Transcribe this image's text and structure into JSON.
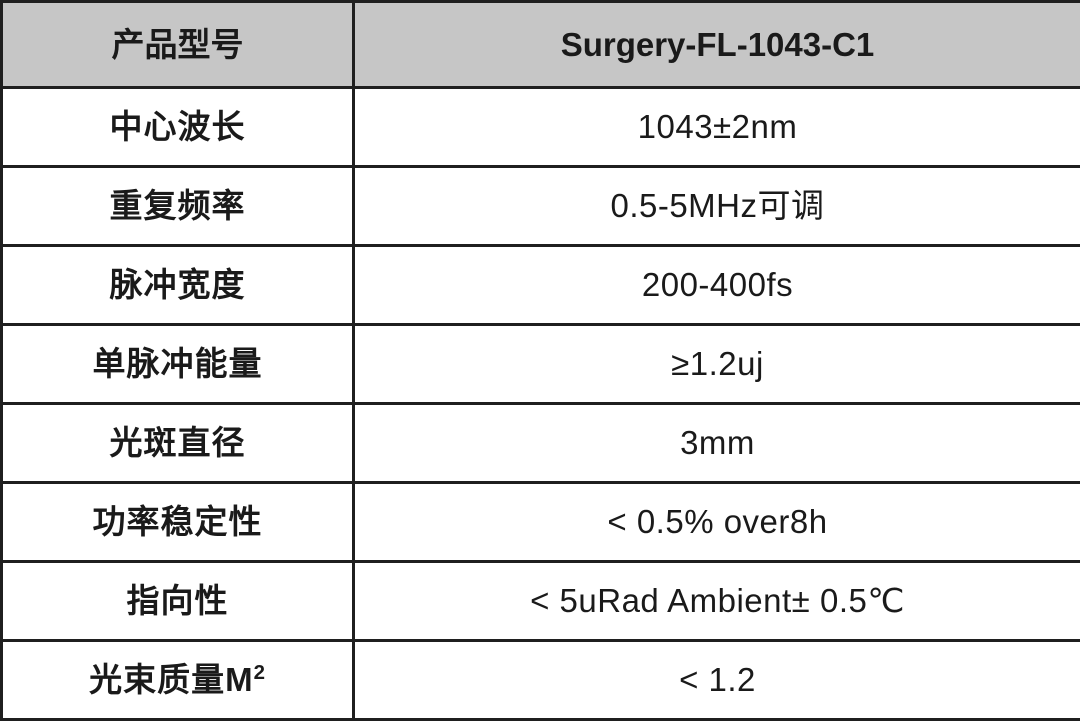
{
  "table": {
    "header": {
      "label": "产品型号",
      "value": "Surgery-FL-1043-C1"
    },
    "rows": [
      {
        "label": "中心波长",
        "value": "1043±2nm"
      },
      {
        "label": "重复频率",
        "value": "0.5-5MHz可调"
      },
      {
        "label": "脉冲宽度",
        "value": "200-400fs"
      },
      {
        "label": "单脉冲能量",
        "value": "≥1.2uj"
      },
      {
        "label": "光斑直径",
        "value": "3mm"
      },
      {
        "label": "功率稳定性",
        "value": "< 0.5% over8h"
      },
      {
        "label": "指向性",
        "value": "< 5uRad Ambient± 0.5℃"
      },
      {
        "label": "光束质量M",
        "label_sup": "2",
        "value": "< 1.2"
      }
    ],
    "colors": {
      "header_background": "#c6c6c6",
      "border": "#1f1f1f",
      "text": "#1a1a1a",
      "row_background": "#ffffff"
    }
  }
}
